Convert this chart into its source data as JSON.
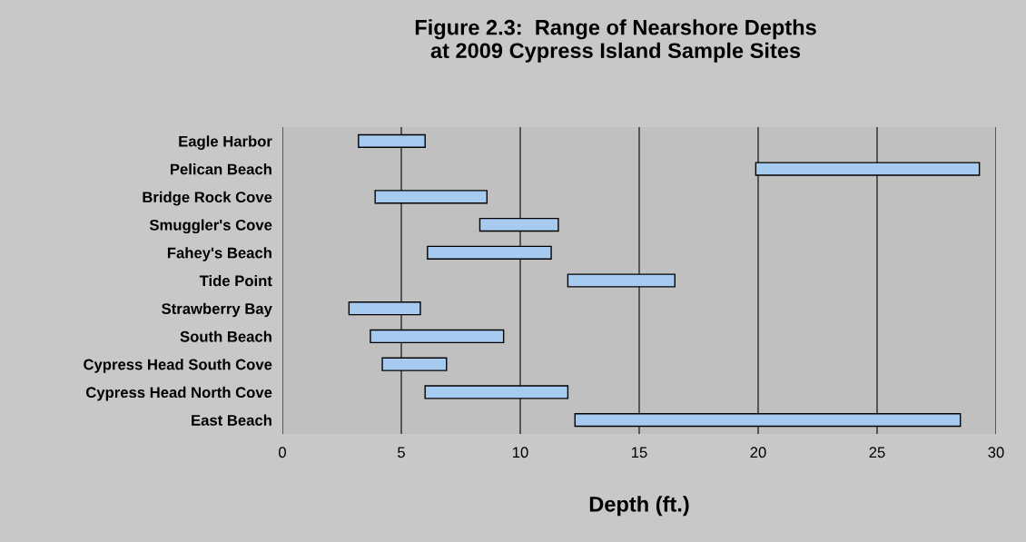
{
  "chart_data": {
    "type": "bar",
    "orientation": "horizontal",
    "title": "Figure 2.3:  Range of Nearshore Depths\nat 2009 Cypress Island Sample Sites",
    "xlabel": "Depth (ft.)",
    "categories": [
      "Eagle Harbor",
      "Pelican Beach",
      "Bridge Rock Cove",
      "Smuggler's Cove",
      "Fahey's Beach",
      "Tide Point",
      "Strawberry Bay",
      "South Beach",
      "Cypress Head South Cove",
      "Cypress Head North Cove",
      "East Beach"
    ],
    "base": [
      3.2,
      19.9,
      3.9,
      8.3,
      6.1,
      12.0,
      2.8,
      3.7,
      4.2,
      6.0,
      12.3
    ],
    "values": [
      2.8,
      9.4,
      4.7,
      3.3,
      5.2,
      4.5,
      3.0,
      5.6,
      2.7,
      6.0,
      16.2
    ],
    "color": "#a6caf0",
    "xlim": [
      0,
      30
    ],
    "xticks": [
      0,
      5,
      10,
      15,
      20,
      25,
      30
    ],
    "grid": "x"
  }
}
